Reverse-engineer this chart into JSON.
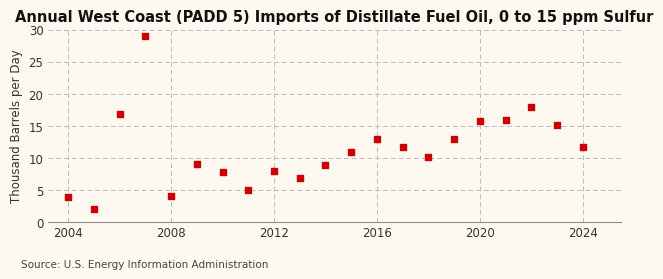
{
  "title": "Annual West Coast (PADD 5) Imports of Distillate Fuel Oil, 0 to 15 ppm Sulfur",
  "ylabel": "Thousand Barrels per Day",
  "source": "Source: U.S. Energy Information Administration",
  "background_color": "#fef9f0",
  "plot_bg_color": "#fef9f0",
  "marker_color": "#cc0000",
  "years": [
    2004,
    2005,
    2006,
    2007,
    2008,
    2009,
    2010,
    2011,
    2012,
    2013,
    2014,
    2015,
    2016,
    2017,
    2018,
    2019,
    2020,
    2021,
    2022,
    2023,
    2024
  ],
  "values": [
    4.0,
    2.0,
    16.8,
    29.0,
    4.1,
    9.1,
    7.9,
    5.0,
    8.0,
    6.9,
    9.0,
    11.0,
    13.0,
    11.8,
    10.1,
    13.0,
    15.8,
    16.0,
    18.0,
    15.2,
    11.8
  ],
  "xlim": [
    2003.2,
    2025.5
  ],
  "ylim": [
    0,
    30
  ],
  "yticks": [
    0,
    5,
    10,
    15,
    20,
    25,
    30
  ],
  "xticks": [
    2004,
    2008,
    2012,
    2016,
    2020,
    2024
  ],
  "grid_color": "#bbbbbb",
  "title_fontsize": 10.5,
  "label_fontsize": 8.5,
  "tick_fontsize": 8.5,
  "source_fontsize": 7.5
}
